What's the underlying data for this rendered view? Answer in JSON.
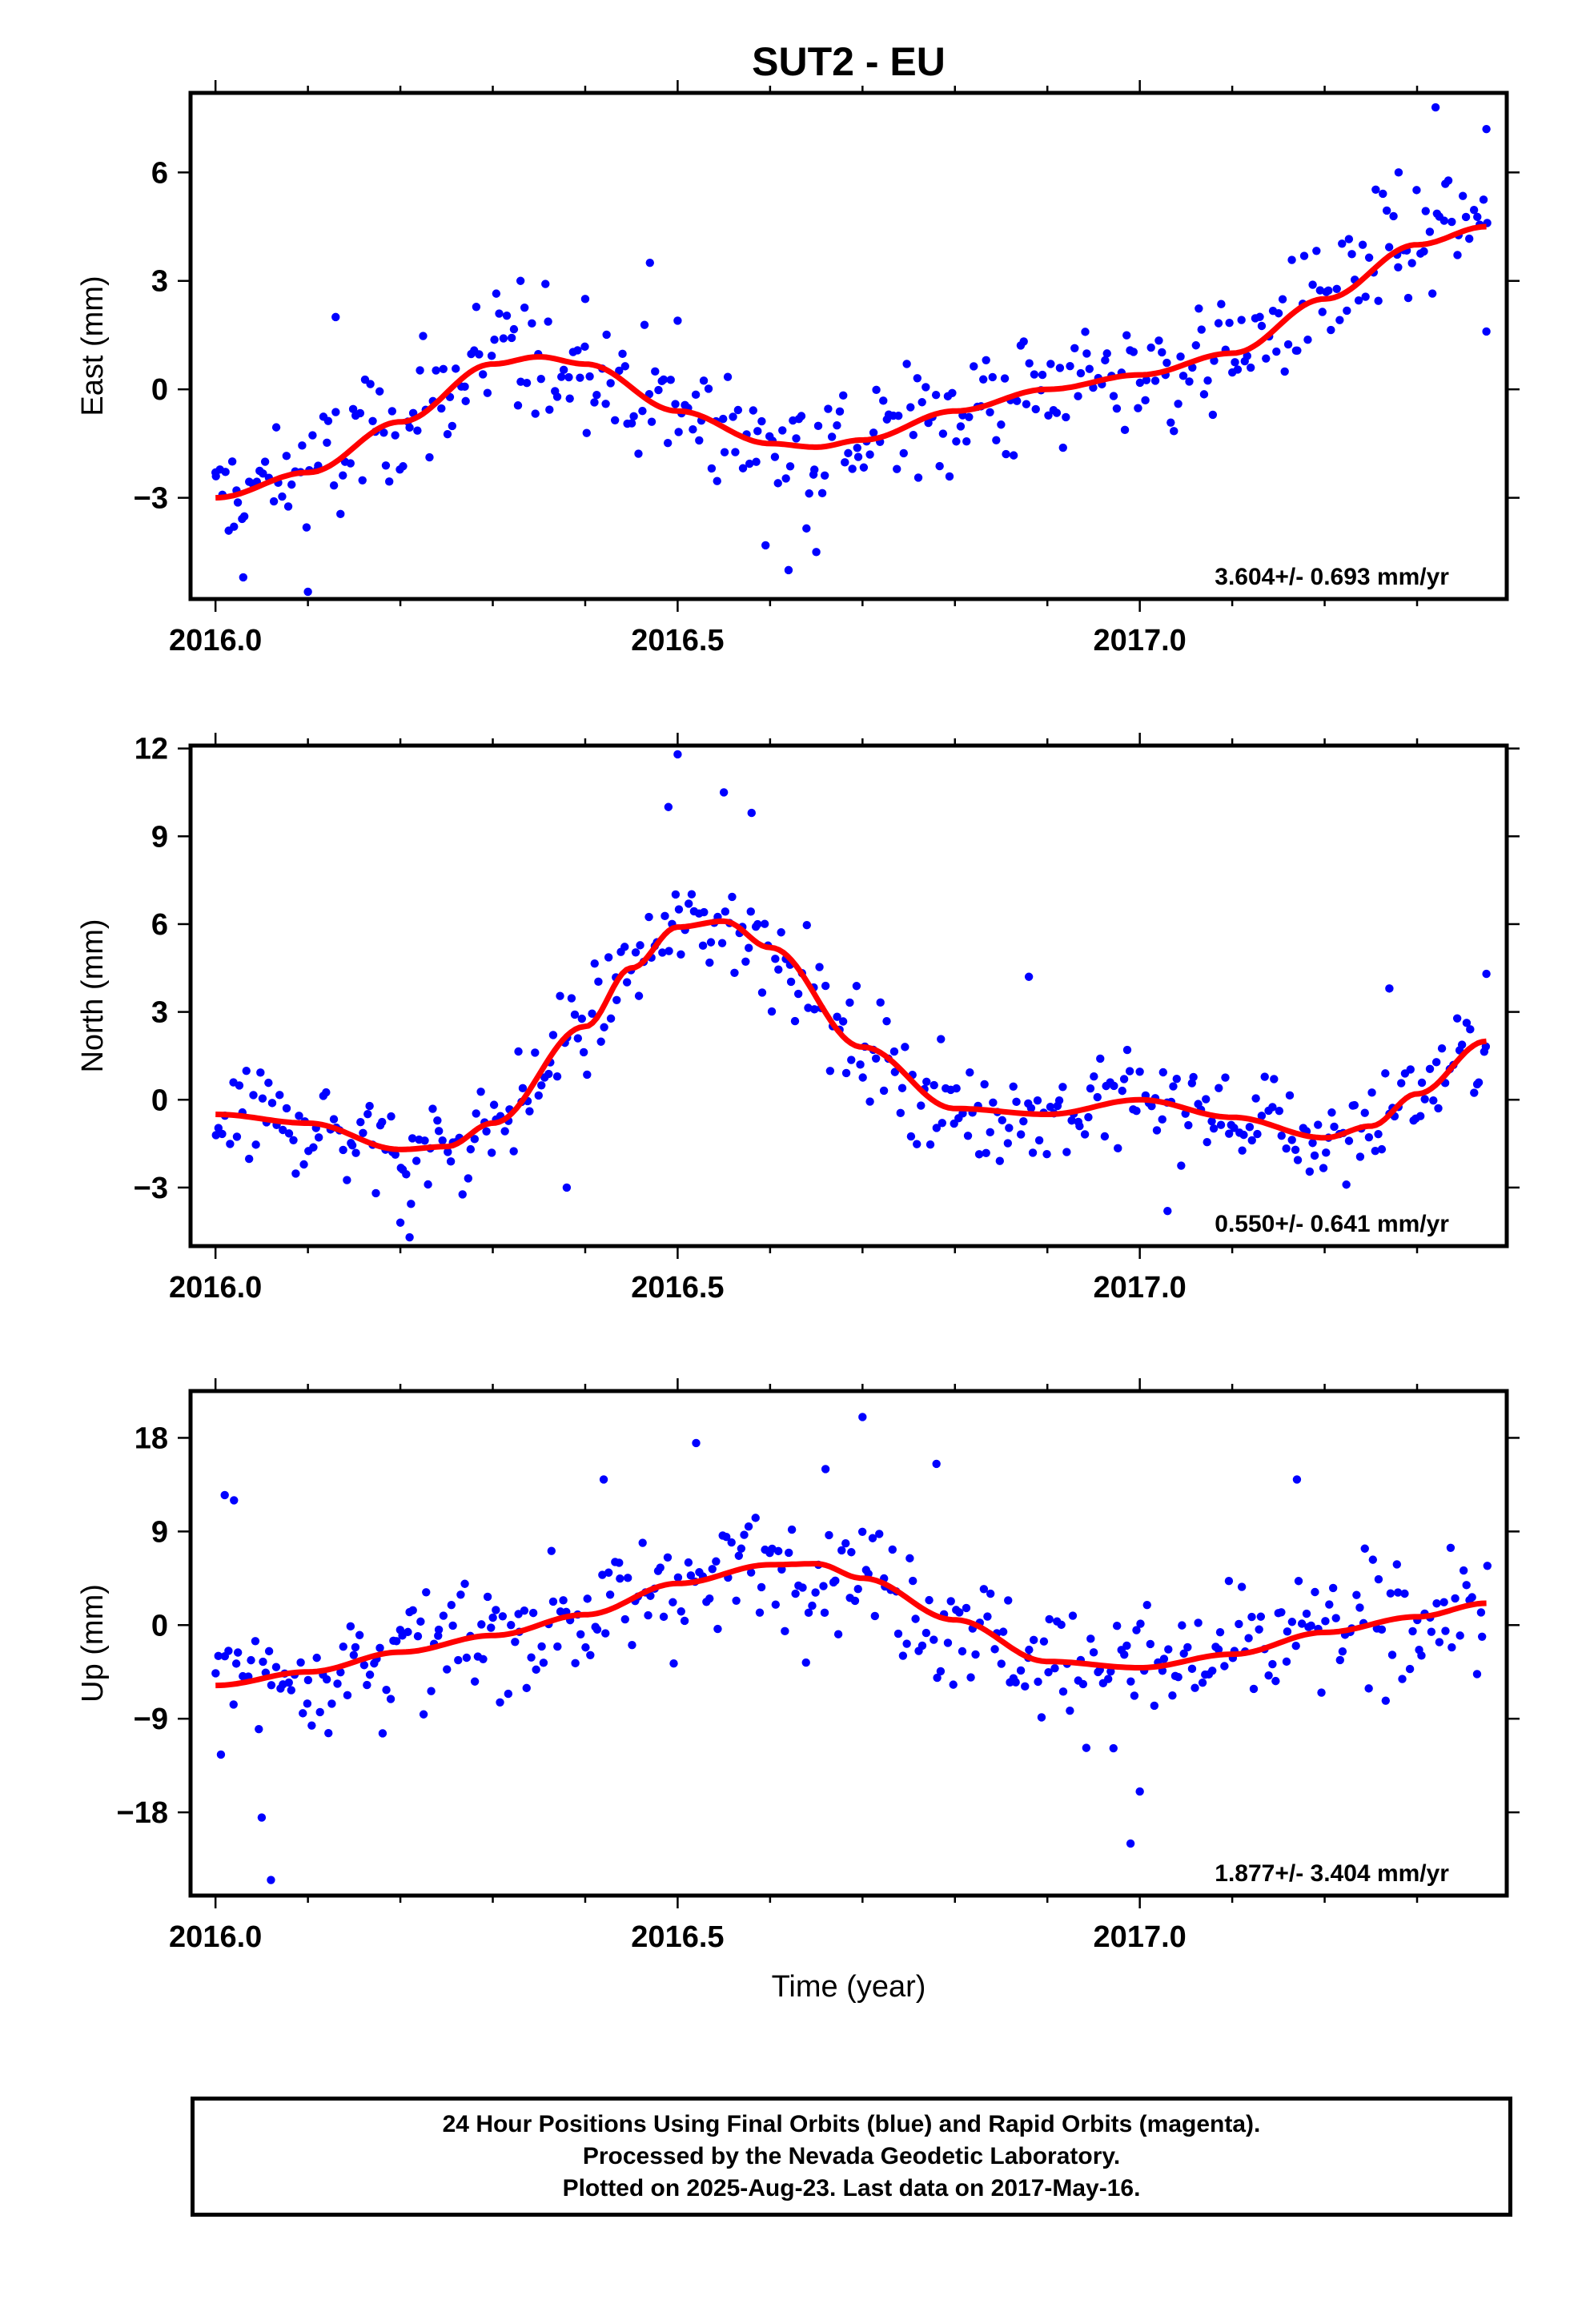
{
  "title": "SUT2 - EU",
  "xlabel": "Time (year)",
  "caption": [
    "24 Hour Positions Using Final Orbits (blue) and Rapid Orbits (magenta).",
    "Processed by the Nevada Geodetic Laboratory.",
    "Plotted on 2025-Aug-23. Last data on 2017-May-16."
  ],
  "colors": {
    "points": "#0000ff",
    "fit": "#ff0000",
    "frame": "#000000"
  },
  "chart_data": [
    {
      "type": "scatter",
      "name": "east",
      "ylabel": "East (mm)",
      "xlim": [
        2015.973,
        2017.397
      ],
      "ylim": [
        -5.8,
        8.2
      ],
      "xticks": [
        2016.0,
        2016.5,
        2017.0
      ],
      "xtick_labels": [
        "2016.0",
        "2016.5",
        "2017.0"
      ],
      "yticks": [
        -3,
        0,
        3,
        6
      ],
      "ytick_labels": [
        "−3",
        "0",
        "3",
        "6"
      ],
      "rate_label": "3.604+/- 0.693 mm/yr",
      "series": [
        {
          "kind": "fit",
          "x": [
            2016.0,
            2016.1,
            2016.2,
            2016.3,
            2016.35,
            2016.4,
            2016.5,
            2016.6,
            2016.65,
            2016.7,
            2016.8,
            2016.9,
            2017.0,
            2017.1,
            2017.2,
            2017.3,
            2017.375
          ],
          "y": [
            -3.0,
            -2.3,
            -0.9,
            0.7,
            0.9,
            0.7,
            -0.6,
            -1.5,
            -1.6,
            -1.4,
            -0.6,
            0.0,
            0.4,
            1.0,
            2.5,
            4.0,
            4.5
          ]
        },
        {
          "kind": "anchor",
          "x": [
            2016.0,
            2016.02,
            2016.03,
            2016.1,
            2016.13,
            2016.33,
            2016.4,
            2016.47,
            2016.5,
            2016.62,
            2016.65,
            2017.28,
            2017.32,
            2017.375,
            2017.375
          ],
          "y": [
            -2.3,
            -3.8,
            -5.2,
            -5.6,
            2.0,
            3.0,
            2.5,
            3.5,
            1.9,
            -5.0,
            -4.5,
            6.0,
            7.8,
            7.2,
            1.6
          ]
        }
      ],
      "scatter": {
        "amp_resid": 1.3,
        "n": 380
      }
    },
    {
      "type": "scatter",
      "name": "north",
      "ylabel": "North (mm)",
      "xlim": [
        2015.973,
        2017.397
      ],
      "ylim": [
        -5.0,
        12.1
      ],
      "xticks": [
        2016.0,
        2016.5,
        2017.0
      ],
      "xtick_labels": [
        "2016.0",
        "2016.5",
        "2017.0"
      ],
      "yticks": [
        -3,
        0,
        3,
        6,
        9,
        12
      ],
      "ytick_labels": [
        "−3",
        "0",
        "3",
        "6",
        "9",
        "12"
      ],
      "rate_label": "0.550+/- 0.641 mm/yr",
      "series": [
        {
          "kind": "fit",
          "x": [
            2016.0,
            2016.1,
            2016.2,
            2016.25,
            2016.3,
            2016.4,
            2016.45,
            2016.5,
            2016.55,
            2016.6,
            2016.7,
            2016.8,
            2016.9,
            2017.0,
            2017.1,
            2017.2,
            2017.25,
            2017.3,
            2017.375
          ],
          "y": [
            -0.5,
            -0.8,
            -1.7,
            -1.6,
            -0.8,
            2.5,
            4.5,
            5.9,
            6.1,
            5.2,
            1.8,
            -0.3,
            -0.5,
            0.0,
            -0.6,
            -1.3,
            -0.9,
            0.2,
            2.0
          ]
        },
        {
          "kind": "anchor",
          "x": [
            2016.5,
            2016.55,
            2016.2,
            2016.21,
            2016.38,
            2017.03,
            2016.49,
            2016.58,
            2017.375,
            2017.27,
            2016.88
          ],
          "y": [
            11.8,
            10.5,
            -4.2,
            -4.7,
            -3.0,
            -3.8,
            10.0,
            9.8,
            4.3,
            3.8,
            4.2
          ]
        }
      ],
      "scatter": {
        "amp_resid": 1.2,
        "n": 380
      }
    },
    {
      "type": "scatter",
      "name": "up",
      "ylabel": "Up (mm)",
      "xlim": [
        2015.973,
        2017.397
      ],
      "ylim": [
        -26.0,
        22.5
      ],
      "xticks": [
        2016.0,
        2016.5,
        2017.0
      ],
      "xtick_labels": [
        "2016.0",
        "2016.5",
        "2017.0"
      ],
      "yticks": [
        -18,
        -9,
        0,
        9,
        18
      ],
      "ytick_labels": [
        "−18",
        "−9",
        "0",
        "9",
        "18"
      ],
      "rate_label": "1.877+/- 3.404 mm/yr",
      "series": [
        {
          "kind": "fit",
          "x": [
            2016.0,
            2016.1,
            2016.2,
            2016.3,
            2016.4,
            2016.5,
            2016.6,
            2016.65,
            2016.7,
            2016.8,
            2016.9,
            2017.0,
            2017.1,
            2017.2,
            2017.3,
            2017.375
          ],
          "y": [
            -5.8,
            -4.5,
            -2.6,
            -1.0,
            1.0,
            4.0,
            5.8,
            5.9,
            4.5,
            0.5,
            -3.5,
            -4.1,
            -2.8,
            -0.7,
            0.8,
            2.1
          ]
        },
        {
          "kind": "anchor",
          "x": [
            2016.01,
            2016.02,
            2016.06,
            2016.7,
            2016.99,
            2016.66,
            2016.52,
            2016.42,
            2016.78,
            2017.17,
            2017.0,
            2016.05
          ],
          "y": [
            12.5,
            12.0,
            -24.5,
            20.0,
            -21.0,
            15.0,
            17.5,
            14.0,
            15.5,
            14.0,
            -16.0,
            -18.5
          ]
        }
      ],
      "scatter": {
        "amp_resid": 4.2,
        "n": 380
      }
    }
  ]
}
